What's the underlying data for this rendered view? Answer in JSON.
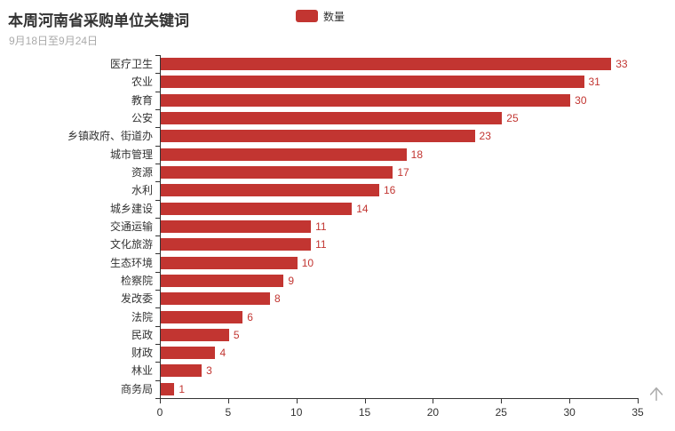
{
  "header": {
    "title": "本周河南省采购单位关键词",
    "subtitle": "9月18日至9月24日"
  },
  "legend": {
    "label": "数量",
    "color": "#c23531"
  },
  "chart_data": {
    "type": "bar",
    "orientation": "horizontal",
    "title": "本周河南省采购单位关键词",
    "subtitle": "9月18日至9月24日",
    "series_name": "数量",
    "categories": [
      "医疗卫生",
      "农业",
      "教育",
      "公安",
      "乡镇政府、街道办",
      "城市管理",
      "资源",
      "水利",
      "城乡建设",
      "交通运输",
      "文化旅游",
      "生态环境",
      "检察院",
      "发改委",
      "法院",
      "民政",
      "财政",
      "林业",
      "商务局"
    ],
    "values": [
      33,
      31,
      30,
      25,
      23,
      18,
      17,
      16,
      14,
      11,
      11,
      10,
      9,
      8,
      6,
      5,
      4,
      3,
      1
    ],
    "xlim": [
      0,
      35
    ],
    "x_ticks": [
      0,
      5,
      10,
      15,
      20,
      25,
      30,
      35
    ],
    "bar_color": "#c23531",
    "value_label_color": "#c23531",
    "axis_color": "#333333",
    "grid": false,
    "legend_position": "top-center",
    "value_labels_shown": true
  },
  "icons": {
    "scroll_top": "up-arrow"
  }
}
